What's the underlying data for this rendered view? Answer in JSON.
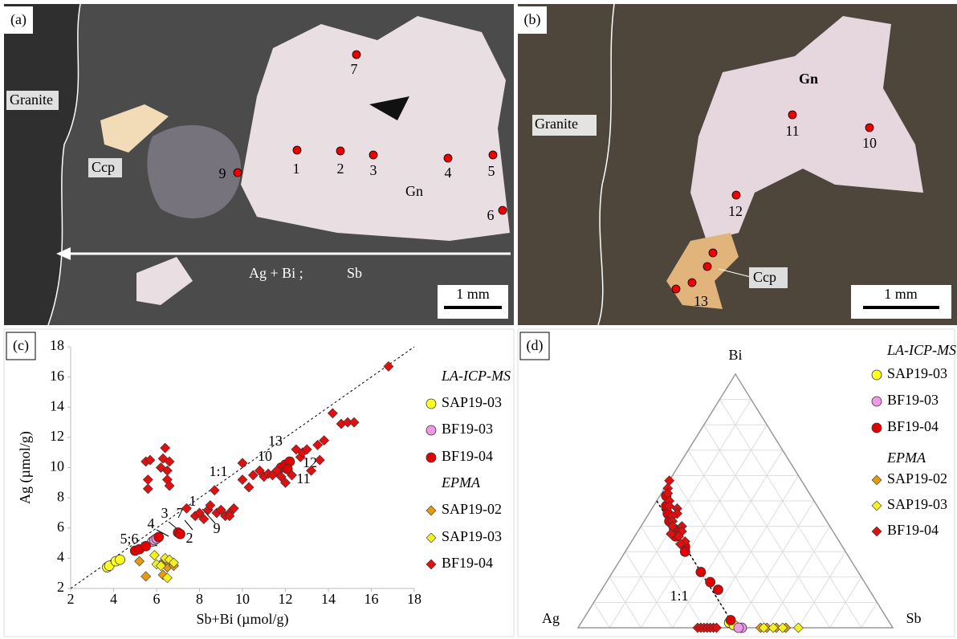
{
  "panels": {
    "a": {
      "label": "(a)",
      "rock": "Granite",
      "mineral_1": "Ccp",
      "mineral_2": "Gn",
      "trend_1": "Ag + Bi ;",
      "trend_2": "Sb",
      "scale": "1 mm",
      "spots": [
        "1",
        "2",
        "3",
        "4",
        "5",
        "6",
        "7",
        "9"
      ]
    },
    "b": {
      "label": "(b)",
      "rock": "Granite",
      "mineral_1": "Gn",
      "mineral_2": "Ccp",
      "scale": "1 mm",
      "spots": [
        "10",
        "11",
        "12",
        "13"
      ]
    }
  },
  "chart_data": [
    {
      "type": "scatter",
      "label": "(c)",
      "x_label": "Sb+Bi (µmol/g)",
      "y_label": "Ag (µmol/g)",
      "xlim": [
        2,
        18
      ],
      "ylim": [
        2,
        18
      ],
      "xticks": [
        2,
        4,
        6,
        8,
        10,
        12,
        14,
        16,
        18
      ],
      "yticks": [
        2,
        4,
        6,
        8,
        10,
        12,
        14,
        16,
        18
      ],
      "grid": false,
      "reference_line": "1:1",
      "annotations": [
        "13",
        "10",
        "12",
        "11",
        "1",
        "7",
        "3",
        "4",
        "5;6",
        "2",
        "9"
      ],
      "series": [
        {
          "name": "SAP19-03",
          "group": "LA-ICP-MS",
          "marker": "circle",
          "color": "#ffff22",
          "x": [
            3.7,
            3.8,
            4.1,
            4.3
          ],
          "y": [
            3.4,
            3.5,
            3.8,
            3.9
          ]
        },
        {
          "name": "BF19-03",
          "group": "LA-ICP-MS",
          "marker": "circle",
          "color": "#ee99e6",
          "x": [
            5.8,
            5.9,
            6.0
          ],
          "y": [
            5.1,
            5.2,
            5.3
          ]
        },
        {
          "name": "BF19-04",
          "group": "LA-ICP-MS",
          "marker": "circle",
          "color": "#e30000",
          "x": [
            5.0,
            5.2,
            5.5,
            6.1,
            7.0,
            7.1,
            11.8,
            12.0,
            12.2,
            12.1
          ],
          "y": [
            4.5,
            4.6,
            4.8,
            5.4,
            5.7,
            5.6,
            10.0,
            10.2,
            10.4,
            9.9
          ]
        },
        {
          "name": "SAP19-02",
          "group": "EPMA",
          "marker": "diamond",
          "color": "#e49b0f",
          "x": [
            5.2,
            5.5,
            6.3,
            6.5,
            6.8,
            6.4,
            6.2
          ],
          "y": [
            3.8,
            2.8,
            2.9,
            3.4,
            3.5,
            3.8,
            3.6
          ]
        },
        {
          "name": "SAP19-03",
          "group": "EPMA",
          "marker": "diamond",
          "color": "#f2f020",
          "x": [
            5.9,
            6.4,
            6.6,
            6.8,
            6.0,
            6.5,
            6.2
          ],
          "y": [
            4.2,
            4.0,
            3.9,
            3.7,
            3.6,
            2.7,
            3.5
          ]
        },
        {
          "name": "BF19-04",
          "group": "EPMA",
          "marker": "diamond",
          "color": "#e01010",
          "x": [
            5.5,
            5.7,
            5.6,
            5.6,
            6.2,
            6.3,
            6.4,
            6.5,
            6.6,
            6.5,
            6.6,
            7.4,
            7.8,
            8.0,
            8.2,
            8.4,
            8.5,
            8.7,
            8.8,
            9.0,
            9.2,
            9.4,
            9.6,
            9.4,
            10.0,
            10.0,
            10.3,
            10.5,
            10.8,
            11.0,
            11.2,
            11.4,
            11.6,
            11.8,
            12.0,
            12.3,
            12.5,
            12.7,
            12.8,
            13.0,
            13.2,
            13.5,
            13.6,
            13.8,
            14.2,
            14.6,
            14.9,
            15.2,
            16.8
          ],
          "y": [
            10.4,
            10.5,
            9.2,
            8.6,
            10.0,
            10.6,
            11.3,
            9.8,
            10.4,
            9.2,
            8.8,
            7.3,
            6.8,
            7.0,
            6.6,
            7.2,
            7.5,
            8.5,
            7.0,
            7.2,
            6.8,
            7.0,
            7.3,
            6.8,
            9.2,
            10.3,
            8.7,
            9.5,
            9.8,
            9.4,
            9.6,
            9.5,
            9.8,
            9.4,
            9.0,
            9.5,
            11.2,
            10.7,
            11.0,
            11.2,
            9.8,
            11.5,
            10.5,
            11.8,
            13.6,
            12.9,
            13.0,
            13.0,
            16.7
          ]
        }
      ]
    },
    {
      "type": "ternary",
      "label": "(d)",
      "apexes": [
        "Bi",
        "Ag",
        "Sb"
      ],
      "reference_line": "1:1",
      "series": [
        {
          "name": "SAP19-03",
          "group": "LA-ICP-MS",
          "marker": "circle",
          "color": "#ffff22",
          "ag": [
            51,
            50
          ],
          "bi": [
            2,
            1
          ],
          "sb": [
            47,
            49
          ]
        },
        {
          "name": "BF19-03",
          "group": "LA-ICP-MS",
          "marker": "circle",
          "color": "#ee99e6",
          "ag": [
            48,
            49
          ],
          "bi": [
            0,
            0
          ],
          "sb": [
            52,
            51
          ]
        },
        {
          "name": "BF19-04",
          "group": "LA-ICP-MS",
          "marker": "circle",
          "color": "#e30000",
          "ag": [
            46,
            48,
            49,
            50,
            50,
            51,
            50,
            51,
            50,
            49,
            48,
            50
          ],
          "bi": [
            52,
            48,
            45,
            42,
            39,
            36,
            32,
            30,
            22,
            18,
            15,
            3
          ],
          "sb": [
            2,
            4,
            6,
            8,
            11,
            13,
            18,
            19,
            28,
            33,
            37,
            47
          ]
        },
        {
          "name": "SAP19-02",
          "group": "EPMA",
          "marker": "diamond",
          "color": "#e49b0f",
          "ag": [
            42,
            40,
            37,
            34
          ],
          "bi": [
            0,
            0,
            0,
            0
          ],
          "sb": [
            58,
            60,
            63,
            66
          ]
        },
        {
          "name": "SAP19-03",
          "group": "EPMA",
          "marker": "diamond",
          "color": "#f2f020",
          "ag": [
            41,
            38,
            35,
            30
          ],
          "bi": [
            0,
            0,
            0,
            0
          ],
          "sb": [
            59,
            62,
            65,
            70
          ]
        },
        {
          "name": "BF19-04",
          "group": "EPMA",
          "marker": "diamond",
          "color": "#e01010",
          "ag": [
            42,
            44,
            45,
            46,
            47,
            45,
            46,
            48,
            49,
            47,
            50,
            48,
            50,
            49,
            51,
            52,
            62,
            61,
            60,
            59,
            58,
            57,
            56
          ],
          "bi": [
            58,
            55,
            53,
            50,
            48,
            47,
            45,
            44,
            42,
            40,
            40,
            38,
            36,
            34,
            33,
            37,
            0,
            0,
            0,
            0,
            0,
            0,
            0
          ],
          "sb": [
            0,
            1,
            2,
            4,
            5,
            8,
            9,
            8,
            9,
            13,
            10,
            14,
            14,
            17,
            16,
            11,
            38,
            39,
            40,
            41,
            42,
            43,
            44
          ]
        }
      ]
    }
  ]
}
